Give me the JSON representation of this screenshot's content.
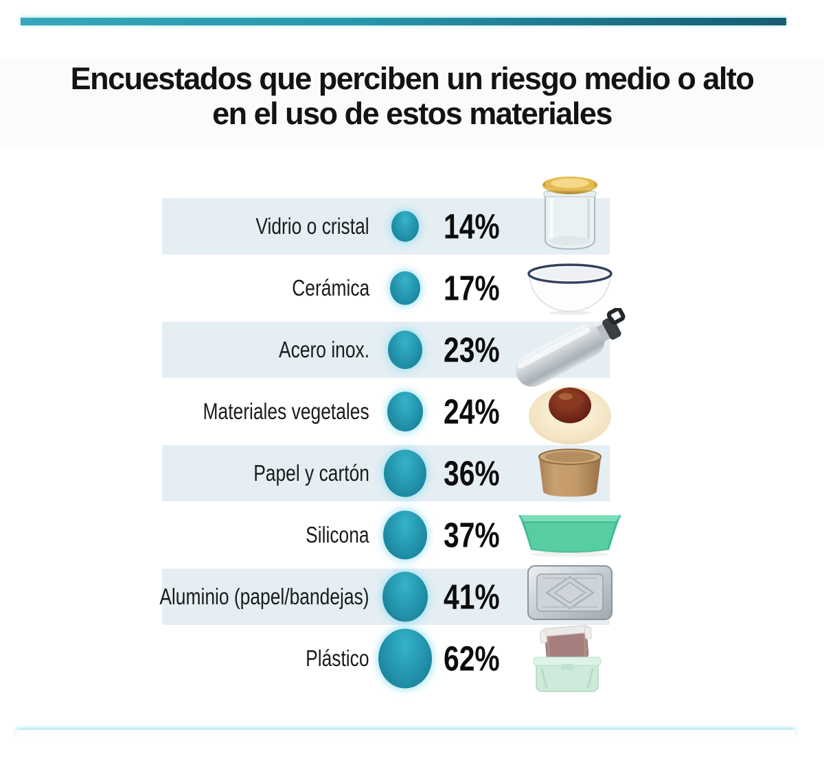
{
  "header": {
    "title_line1": "Encuestados que perciben un riesgo medio o alto",
    "title_line2": "en el uso de estos materiales"
  },
  "colors": {
    "accent_teal": "#2196ae",
    "bubble_light": "#36b3c9",
    "bubble_dark": "#15768f",
    "stripe_background": "#e4eef3",
    "bar_gradient_left": "#35a8ba",
    "bar_gradient_right": "#175d73",
    "text": "#111111"
  },
  "chart_data": {
    "type": "bar",
    "variant": "proportional-bubble-pictogram",
    "title": "Encuestados que perciben un riesgo medio o alto en el uso de estos materiales",
    "unit": "%",
    "categories": [
      "Vidrio o cristal",
      "Cerámica",
      "Acero inox.",
      "Materiales vegetales",
      "Papel y cartón",
      "Silicona",
      "Aluminio (papel/bandejas)",
      "Plástico"
    ],
    "values": [
      14,
      17,
      23,
      24,
      36,
      37,
      41,
      62
    ],
    "xlabel": "",
    "ylabel": "",
    "legend_position": "none",
    "grid": false
  },
  "rows": [
    {
      "label": "Vidrio o cristal",
      "value": "14%",
      "pct": 14,
      "icon": "glass-jar-image",
      "bubble_w": 40,
      "bubble_h": 45
    },
    {
      "label": "Cerámica",
      "value": "17%",
      "pct": 17,
      "icon": "ceramic-bowl-image",
      "bubble_w": 44,
      "bubble_h": 49
    },
    {
      "label": "Acero inox.",
      "value": "23%",
      "pct": 23,
      "icon": "steel-bottle-image",
      "bubble_w": 50,
      "bubble_h": 56
    },
    {
      "label": "Materiales vegetales",
      "value": "24%",
      "pct": 24,
      "icon": "vegetal-plate-image",
      "bubble_w": 52,
      "bubble_h": 58
    },
    {
      "label": "Papel y cartón",
      "value": "36%",
      "pct": 36,
      "icon": "paper-cup-image",
      "bubble_w": 62,
      "bubble_h": 69
    },
    {
      "label": "Silicona",
      "value": "37%",
      "pct": 37,
      "icon": "silicone-mold-image",
      "bubble_w": 64,
      "bubble_h": 71
    },
    {
      "label": "Aluminio (papel/bandejas)",
      "value": "41%",
      "pct": 41,
      "icon": "aluminum-tray-image",
      "bubble_w": 66,
      "bubble_h": 73
    },
    {
      "label": "Plástico",
      "value": "62%",
      "pct": 62,
      "icon": "plastic-container-image",
      "bubble_w": 78,
      "bubble_h": 87
    }
  ]
}
